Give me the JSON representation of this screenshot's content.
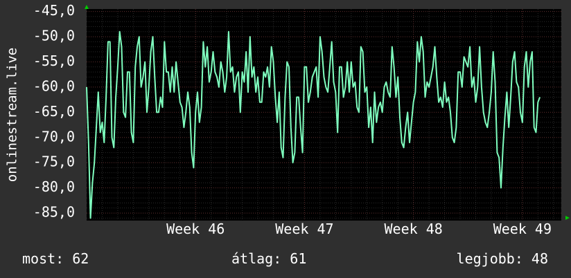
{
  "colors": {
    "background": "#2f2f2f",
    "plot_background": "#000000",
    "grid_minor": "#2a2a2a",
    "grid_major": "#5a2a2a",
    "line": "#7fffbf",
    "axis_arrow": "#00cc00",
    "text": "#ffffff"
  },
  "chart_data": {
    "type": "line",
    "ylabel": "onlinestream.live",
    "ylim": [
      -86.5,
      -44.5
    ],
    "yticks": [
      -45,
      -50,
      -55,
      -60,
      -65,
      -70,
      -75,
      -80,
      -85
    ],
    "ytick_labels": [
      "-45,0",
      "-50,0",
      "-55,0",
      "-60,0",
      "-65,0",
      "-70,0",
      "-75,0",
      "-80,0",
      "-85,0"
    ],
    "xlim": [
      0,
      30.5
    ],
    "xticks": [
      {
        "x": 7,
        "label": "Week 46"
      },
      {
        "x": 14,
        "label": "Week 47"
      },
      {
        "x": 21,
        "label": "Week 48"
      },
      {
        "x": 28,
        "label": "Week 49"
      }
    ],
    "grid": true,
    "series": [
      {
        "x_step": 0.125,
        "values": [
          -60,
          -71,
          -86,
          -79,
          -75,
          -68,
          -61,
          -69,
          -67,
          -71,
          -62,
          -51,
          -51,
          -70,
          -72,
          -62,
          -56,
          -49,
          -52,
          -65,
          -66,
          -57,
          -57,
          -69,
          -71,
          -56,
          -52,
          -50,
          -60,
          -58,
          -55,
          -65,
          -60,
          -53,
          -50,
          -58,
          -65,
          -65,
          -62,
          -64,
          -51,
          -57,
          -57,
          -61,
          -56,
          -61,
          -55,
          -59,
          -63,
          -64,
          -68,
          -65,
          -61,
          -64,
          -73,
          -76,
          -65,
          -61,
          -67,
          -64,
          -51,
          -56,
          -52,
          -59,
          -57,
          -53,
          -57,
          -58,
          -60,
          -55,
          -57,
          -61,
          -58,
          -49,
          -57,
          -56,
          -61,
          -58,
          -57,
          -65,
          -57,
          -59,
          -53,
          -61,
          -50,
          -58,
          -56,
          -61,
          -58,
          -63,
          -63,
          -57,
          -58,
          -56,
          -60,
          -52,
          -55,
          -62,
          -67,
          -61,
          -72,
          -74,
          -62,
          -55,
          -56,
          -68,
          -75,
          -73,
          -62,
          -62,
          -68,
          -73,
          -56,
          -56,
          -63,
          -61,
          -58,
          -57,
          -56,
          -62,
          -50,
          -53,
          -58,
          -60,
          -61,
          -56,
          -51,
          -59,
          -61,
          -69,
          -56,
          -56,
          -62,
          -60,
          -55,
          -61,
          -55,
          -60,
          -59,
          -64,
          -65,
          -52,
          -53,
          -61,
          -60,
          -68,
          -64,
          -71,
          -61,
          -67,
          -64,
          -63,
          -65,
          -60,
          -59,
          -61,
          -62,
          -52,
          -56,
          -62,
          -58,
          -66,
          -71,
          -72,
          -68,
          -65,
          -71,
          -67,
          -63,
          -61,
          -51,
          -55,
          -50,
          -53,
          -62,
          -59,
          -60,
          -58,
          -56,
          -52,
          -58,
          -63,
          -62,
          -64,
          -59,
          -63,
          -62,
          -65,
          -70,
          -71,
          -68,
          -57,
          -57,
          -60,
          -54,
          -55,
          -56,
          -52,
          -60,
          -58,
          -63,
          -60,
          -52,
          -60,
          -65,
          -67,
          -68,
          -65,
          -61,
          -53,
          -59,
          -73,
          -74,
          -80,
          -72,
          -66,
          -61,
          -68,
          -62,
          -55,
          -53,
          -59,
          -60,
          -65,
          -67,
          -56,
          -53,
          -60,
          -55,
          -53,
          -68,
          -69,
          -63,
          -62
        ]
      }
    ]
  },
  "footer": {
    "now": "most: 62",
    "avg": "átlag: 61",
    "best": "legjobb: 48"
  }
}
